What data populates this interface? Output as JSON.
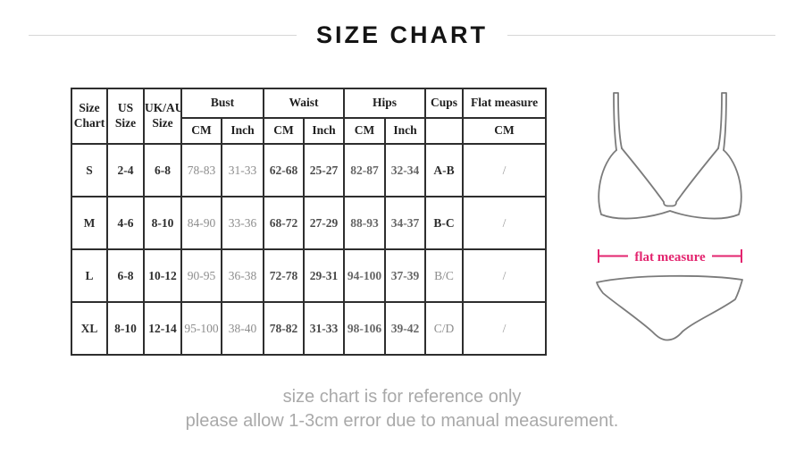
{
  "page": {
    "title": "SIZE CHART"
  },
  "table": {
    "headers": {
      "size_chart": "Size Chart",
      "us_size": "US Size",
      "uk_au_size": "UK/AU Size",
      "bust": "Bust",
      "waist": "Waist",
      "hips": "Hips",
      "cups": "Cups",
      "flat_measure": "Flat measure"
    },
    "subheaders": [
      "CM",
      "Inch",
      "CM",
      "Inch",
      "CM",
      "Inch",
      "",
      "CM"
    ],
    "rows": [
      [
        "S",
        "2-4",
        "6-8",
        "78-83",
        "31-33",
        "62-68",
        "25-27",
        "82-87",
        "32-34",
        "A-B",
        "/"
      ],
      [
        "M",
        "4-6",
        "8-10",
        "84-90",
        "33-36",
        "68-72",
        "27-29",
        "88-93",
        "34-37",
        "B-C",
        "/"
      ],
      [
        "L",
        "6-8",
        "10-12",
        "90-95",
        "36-38",
        "72-78",
        "29-31",
        "94-100",
        "37-39",
        "B/C",
        "/"
      ],
      [
        "XL",
        "8-10",
        "12-14",
        "95-100",
        "38-40",
        "78-82",
        "31-33",
        "98-106",
        "39-42",
        "C/D",
        "/"
      ]
    ]
  },
  "illustration": {
    "flat_measure_label": "flat measure",
    "accent_color": "#e3256f",
    "outline_color": "#7b7b7b"
  },
  "footer": {
    "line1": "size chart is for reference only",
    "line2": "please allow 1-3cm error due to manual measurement."
  }
}
